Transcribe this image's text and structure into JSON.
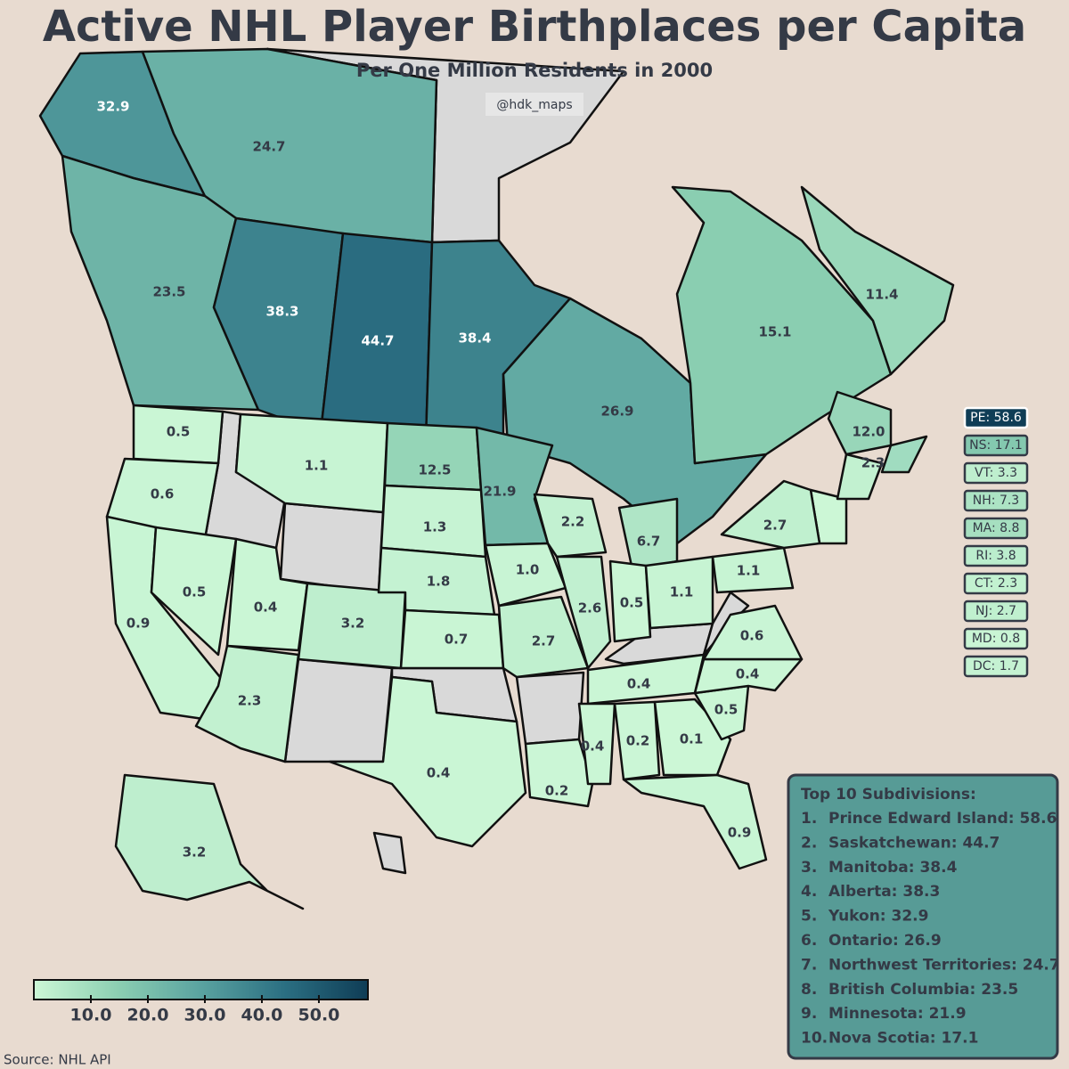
{
  "title": "Active NHL Player Birthplaces per Capita",
  "subtitle": "Per One Million Residents in 2000",
  "credit": "@hdk_maps",
  "source": "Source: NHL API",
  "map": {
    "values": [
      32.9,
      24.7,
      23.5,
      38.3,
      44.7,
      38.4,
      26.9,
      15.1,
      11.4,
      12,
      0.5,
      0.6,
      0.9,
      0.5,
      1.1,
      0.4,
      3.2,
      2.3,
      12.5,
      1.3,
      1.8,
      0.7,
      0.4,
      21.9,
      1,
      2.7,
      0.2,
      2.2,
      2.6,
      6.7,
      0.5,
      1.1,
      0.4,
      0.4,
      0.2,
      0.1,
      0.9,
      0.5,
      0.4,
      0.6,
      1.1,
      2.7,
      2.3,
      3.2
    ],
    "value_labels": [
      "32.9",
      "24.7",
      "23.5",
      "38.3",
      "44.7",
      "38.4",
      "26.9",
      "15.1",
      "11.4",
      "12.0",
      "0.5",
      "0.6",
      "0.9",
      "0.5",
      "1.1",
      "0.4",
      "3.2",
      "2.3",
      "12.5",
      "1.3",
      "1.8",
      "0.7",
      "0.4",
      "21.9",
      "1.0",
      "2.7",
      "0.2",
      "2.2",
      "2.6",
      "6.7",
      "0.5",
      "1.1",
      "0.4",
      "0.4",
      "0.2",
      "0.1",
      "0.9",
      "0.5",
      "0.4",
      "0.6",
      "1.1",
      "2.7",
      "2.3",
      "3.2"
    ]
  },
  "insets": {
    "values": [
      58.6,
      17.1,
      3.3,
      7.3,
      8.8,
      3.8,
      2.3,
      2.7,
      0.8,
      1.7
    ],
    "value_labels": [
      "PE: 58.6",
      "NS: 17.1",
      "VT: 3.3",
      "NH: 7.3",
      "MA: 8.8",
      "RI: 3.8",
      "CT: 2.3",
      "NJ: 2.7",
      "MD: 0.8",
      "DC: 1.7"
    ]
  },
  "colorbar": {
    "colors": [
      "#ccf7d6",
      "#8ccfb2",
      "#5aa3a0",
      "#2b6f82",
      "#0f3d56"
    ],
    "range": [
      0,
      58.6
    ],
    "ticks": [
      {
        "value": 10,
        "label": "10.0"
      },
      {
        "value": 20,
        "label": "20.0"
      },
      {
        "value": 30,
        "label": "30.0"
      },
      {
        "value": 40,
        "label": "40.0"
      },
      {
        "value": 50,
        "label": "50.0"
      }
    ]
  },
  "no_data_color": "#d9d9d9",
  "top10": {
    "title": "Top 10 Subdivisions:",
    "items": [
      {
        "rank": "1.",
        "text": "Prince Edward Island: 58.6"
      },
      {
        "rank": "2.",
        "text": "Saskatchewan: 44.7"
      },
      {
        "rank": "3.",
        "text": "Manitoba: 38.4"
      },
      {
        "rank": "4.",
        "text": "Alberta: 38.3"
      },
      {
        "rank": "5.",
        "text": "Yukon: 32.9"
      },
      {
        "rank": "6.",
        "text": "Ontario: 26.9"
      },
      {
        "rank": "7.",
        "text": "Northwest Territories: 24.7"
      },
      {
        "rank": "8.",
        "text": "British Columbia: 23.5"
      },
      {
        "rank": "9.",
        "text": "Minnesota: 21.9"
      },
      {
        "rank": "10.",
        "text": "Nova Scotia: 17.1"
      }
    ]
  }
}
